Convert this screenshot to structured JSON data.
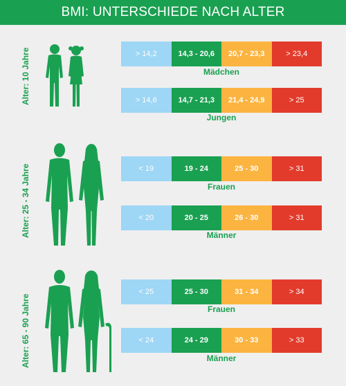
{
  "title": "BMI: UNTERSCHIEDE NACH ALTER",
  "colors": {
    "green": "#1aa051",
    "light_blue": "#9ed6f5",
    "orange": "#fbb440",
    "red": "#e23b2c",
    "background": "#efefef"
  },
  "sections": [
    {
      "age_label": "Alter: 10 Jahre",
      "figures": [
        "boy-icon",
        "girl-icon"
      ],
      "groups": [
        {
          "label": "Mädchen",
          "ranges": [
            "> 14,2",
            "14,3 - 20,6",
            "20,7 - 23,3",
            "> 23,4"
          ]
        },
        {
          "label": "Jungen",
          "ranges": [
            "> 14,6",
            "14,7 - 21,3",
            "21,4 - 24,9",
            "> 25"
          ]
        }
      ]
    },
    {
      "age_label": "Alter: 25 - 34 Jahre",
      "figures": [
        "man-icon",
        "woman-icon"
      ],
      "groups": [
        {
          "label": "Frauen",
          "ranges": [
            "< 19",
            "19 - 24",
            "25 - 30",
            "> 31"
          ]
        },
        {
          "label": "Männer",
          "ranges": [
            "< 20",
            "20 - 25",
            "26 - 30",
            "> 31"
          ]
        }
      ]
    },
    {
      "age_label": "Alter: 65 - 90 Jahre",
      "figures": [
        "elderly-man-icon",
        "elderly-woman-icon"
      ],
      "groups": [
        {
          "label": "Frauen",
          "ranges": [
            "< 25",
            "25 - 30",
            "31 - 34",
            "> 34"
          ]
        },
        {
          "label": "Männer",
          "ranges": [
            "< 24",
            "24 - 29",
            "30 - 33",
            "> 33"
          ]
        }
      ]
    }
  ]
}
